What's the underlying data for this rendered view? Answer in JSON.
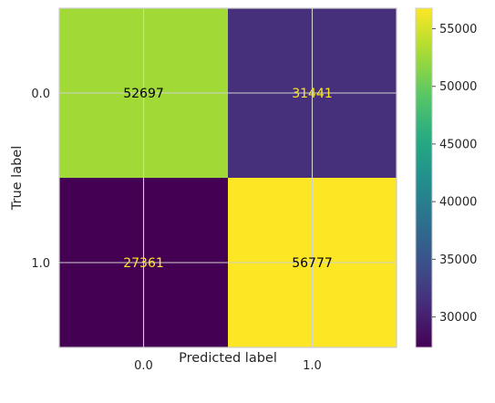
{
  "chart_data": {
    "type": "heatmap",
    "title": "",
    "xlabel": "Predicted label",
    "ylabel": "True label",
    "x_categories": [
      "0.0",
      "1.0"
    ],
    "y_categories": [
      "0.0",
      "1.0"
    ],
    "values": [
      [
        52697,
        31441
      ],
      [
        27361,
        56777
      ]
    ],
    "colormap": "viridis",
    "colorbar": {
      "vmin": 27361,
      "vmax": 56777,
      "ticks": [
        30000,
        35000,
        40000,
        45000,
        50000,
        55000
      ],
      "tick_labels": [
        "30000",
        "35000",
        "40000",
        "45000",
        "50000",
        "55000"
      ]
    },
    "grid": true,
    "text_colors": {
      "dark_cell": "#fde725",
      "light_cell": "#000000"
    }
  }
}
